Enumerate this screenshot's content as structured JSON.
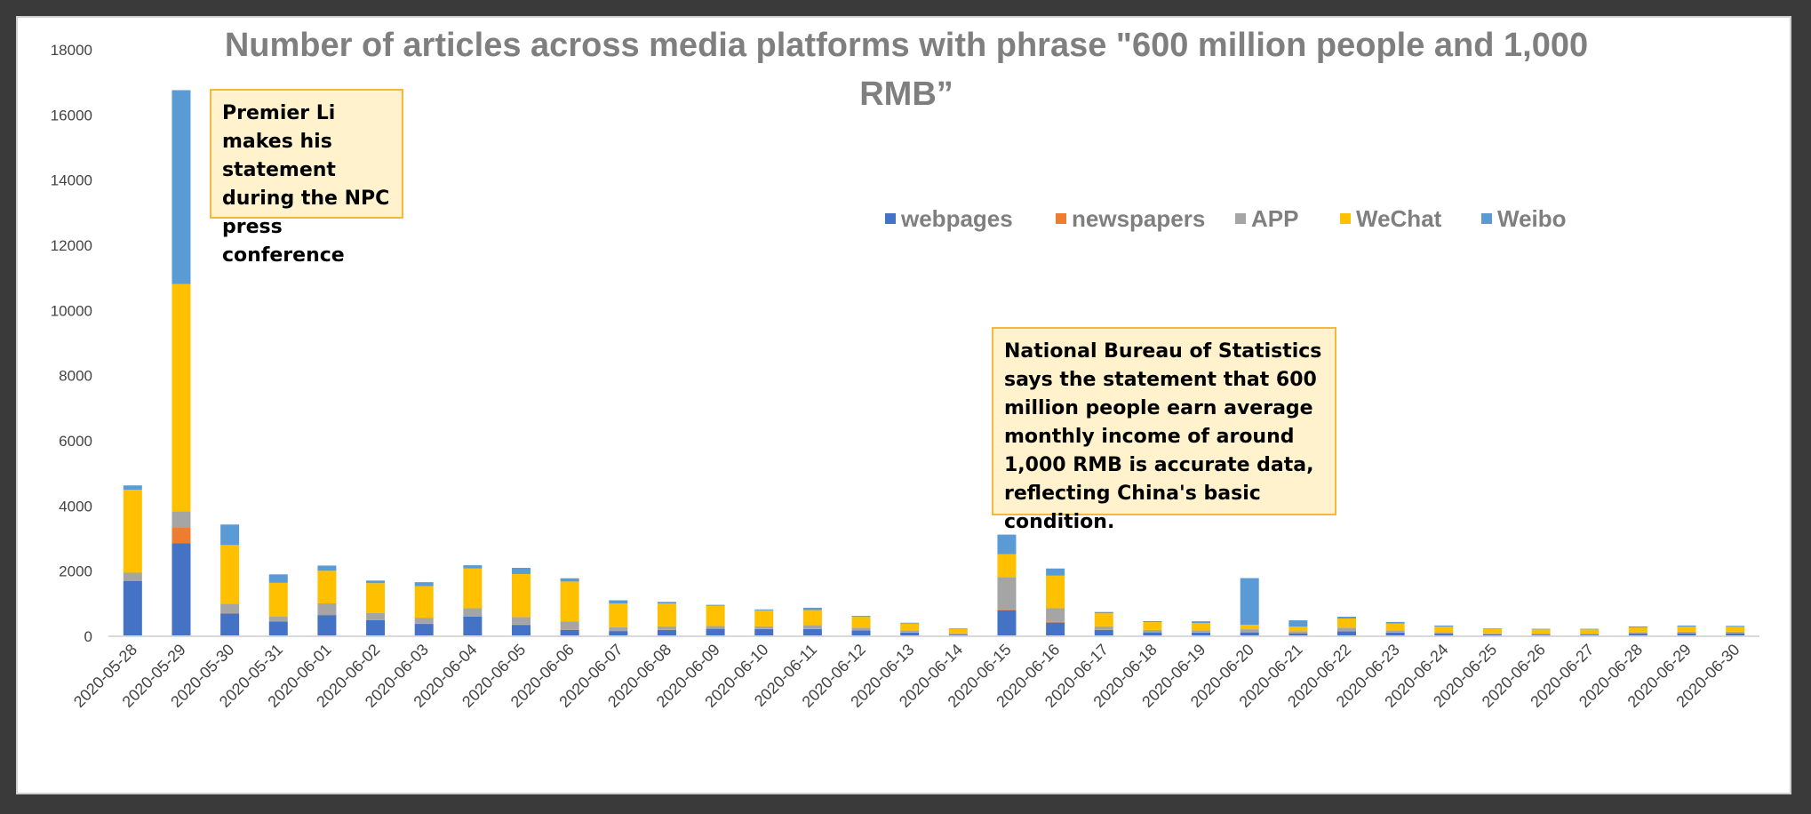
{
  "colors": {
    "webpages": "#4472c4",
    "newspapers": "#ed7d31",
    "APP": "#a5a5a5",
    "WeChat": "#ffc000",
    "Weibo": "#5b9bd5",
    "background": "#ffffff",
    "annotation_fill": "#fff2cc",
    "annotation_border": "#f4b93a"
  },
  "annotations": [
    {
      "text": "Premier Li makes his statement during the NPC press conference"
    },
    {
      "text": "National Bureau of Statistics says the statement that 600 million people earn average monthly income of around 1,000 RMB is accurate data, reflecting China's basic condition."
    }
  ],
  "chart_data": {
    "type": "bar",
    "stacked": true,
    "title": "Number of articles across media platforms with phrase \"600 million people and 1,000 RMB”",
    "title_lines": [
      "Number of articles across media platforms with phrase \"600 million people and 1,000",
      "RMB”"
    ],
    "xlabel": "",
    "ylabel": "",
    "ylim": [
      0,
      18000
    ],
    "yticks": [
      0,
      2000,
      4000,
      6000,
      8000,
      10000,
      12000,
      14000,
      16000,
      18000
    ],
    "grid": false,
    "legend_position": "top-right",
    "categories": [
      "2020-05-28",
      "2020-05-29",
      "2020-05-30",
      "2020-05-31",
      "2020-06-01",
      "2020-06-02",
      "2020-06-03",
      "2020-06-04",
      "2020-06-05",
      "2020-06-06",
      "2020-06-07",
      "2020-06-08",
      "2020-06-09",
      "2020-06-10",
      "2020-06-11",
      "2020-06-12",
      "2020-06-13",
      "2020-06-14",
      "2020-06-15",
      "2020-06-16",
      "2020-06-17",
      "2020-06-18",
      "2020-06-19",
      "2020-06-20",
      "2020-06-21",
      "2020-06-22",
      "2020-06-23",
      "2020-06-24",
      "2020-06-25",
      "2020-06-26",
      "2020-06-27",
      "2020-06-28",
      "2020-06-29",
      "2020-06-30"
    ],
    "series": [
      {
        "name": "webpages",
        "values": [
          1700,
          2850,
          700,
          450,
          650,
          500,
          380,
          600,
          350,
          200,
          160,
          190,
          230,
          220,
          220,
          180,
          110,
          50,
          800,
          420,
          190,
          120,
          110,
          120,
          90,
          150,
          110,
          80,
          60,
          50,
          50,
          80,
          90,
          90
        ]
      },
      {
        "name": "newspapers",
        "values": [
          0,
          500,
          20,
          10,
          20,
          10,
          10,
          20,
          10,
          10,
          5,
          5,
          5,
          5,
          5,
          5,
          5,
          0,
          20,
          20,
          5,
          5,
          5,
          5,
          5,
          5,
          5,
          0,
          0,
          0,
          0,
          0,
          0,
          0
        ]
      },
      {
        "name": "APP",
        "values": [
          250,
          480,
          280,
          150,
          340,
          200,
          180,
          240,
          230,
          250,
          110,
          110,
          80,
          80,
          120,
          80,
          60,
          40,
          1000,
          420,
          110,
          70,
          70,
          90,
          60,
          110,
          60,
          40,
          30,
          30,
          30,
          40,
          50,
          50
        ]
      },
      {
        "name": "WeChat",
        "values": [
          2550,
          6980,
          1800,
          1030,
          1000,
          920,
          970,
          1220,
          1320,
          1220,
          730,
          700,
          620,
          490,
          460,
          330,
          220,
          130,
          700,
          1000,
          400,
          240,
          220,
          140,
          140,
          280,
          220,
          180,
          130,
          130,
          130,
          150,
          160,
          150
        ]
      },
      {
        "name": "Weibo",
        "values": [
          130,
          5950,
          630,
          260,
          160,
          80,
          120,
          100,
          190,
          100,
          100,
          50,
          30,
          30,
          70,
          30,
          20,
          20,
          600,
          220,
          40,
          30,
          55,
          1430,
          195,
          55,
          45,
          30,
          20,
          20,
          20,
          30,
          30,
          30
        ]
      }
    ]
  }
}
